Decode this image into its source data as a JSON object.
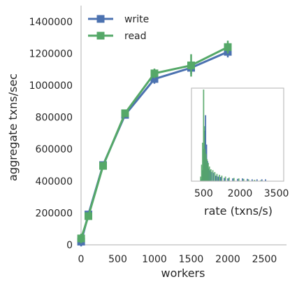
{
  "chart_data": [
    {
      "type": "line",
      "title": "",
      "xlabel": "workers",
      "ylabel": "aggregate txns/sec",
      "xlim": [
        0,
        2800
      ],
      "ylim": [
        0,
        1500000
      ],
      "x_ticks": [
        0,
        500,
        1000,
        1500,
        2000,
        2500
      ],
      "y_ticks": [
        0,
        200000,
        400000,
        600000,
        800000,
        1000000,
        1200000,
        1400000
      ],
      "x_tick_labels": [
        "0",
        "500",
        "1000",
        "1500",
        "2000",
        "2500"
      ],
      "y_tick_labels": [
        "0",
        "200000",
        "400000",
        "600000",
        "800000",
        "1000000",
        "1200000",
        "1400000"
      ],
      "grid": false,
      "legend_position": "top-left",
      "x": [
        1,
        100,
        300,
        600,
        1000,
        1500,
        2000
      ],
      "series": [
        {
          "name": "write",
          "color": "#4c72b0",
          "values": [
            20000,
            190000,
            500000,
            815000,
            1040000,
            1110000,
            1210000
          ],
          "error": [
            30000,
            20000,
            20000,
            20000,
            30000,
            40000,
            35000
          ]
        },
        {
          "name": "read",
          "color": "#55a868",
          "values": [
            40000,
            180000,
            495000,
            825000,
            1075000,
            1125000,
            1240000
          ],
          "error": [
            30000,
            20000,
            20000,
            20000,
            30000,
            70000,
            40000
          ]
        }
      ]
    },
    {
      "type": "histogram",
      "title": "",
      "xlabel": "rate (txns/s)",
      "ylabel": "",
      "xlim": [
        0,
        3800
      ],
      "x_ticks": [
        500,
        2000,
        3500
      ],
      "x_tick_labels": [
        "500",
        "2000",
        "3500"
      ],
      "grid": false,
      "series": [
        {
          "name": "write",
          "color": "#4c72b0",
          "bins": [
            [
              400,
              0.02
            ],
            [
              450,
              0.12
            ],
            [
              500,
              0.35
            ],
            [
              540,
              0.55
            ],
            [
              580,
              0.72
            ],
            [
              620,
              0.4
            ],
            [
              660,
              0.22
            ],
            [
              700,
              0.14
            ],
            [
              760,
              0.12
            ],
            [
              820,
              0.1
            ],
            [
              900,
              0.09
            ],
            [
              1000,
              0.06
            ],
            [
              1100,
              0.05
            ],
            [
              1200,
              0.045
            ],
            [
              1350,
              0.035
            ],
            [
              1500,
              0.03
            ],
            [
              1700,
              0.03
            ],
            [
              1900,
              0.025
            ],
            [
              2100,
              0.03
            ],
            [
              2300,
              0.025
            ],
            [
              2500,
              0.02
            ],
            [
              2700,
              0.02
            ],
            [
              2900,
              0.02
            ],
            [
              3050,
              0.02
            ]
          ]
        },
        {
          "name": "read",
          "color": "#55a868",
          "bins": [
            [
              380,
              0.05
            ],
            [
              420,
              0.18
            ],
            [
              460,
              0.42
            ],
            [
              500,
              1.0
            ],
            [
              530,
              0.6
            ],
            [
              560,
              0.35
            ],
            [
              600,
              0.3
            ],
            [
              640,
              0.24
            ],
            [
              690,
              0.2
            ],
            [
              740,
              0.16
            ],
            [
              800,
              0.13
            ],
            [
              880,
              0.12
            ],
            [
              960,
              0.1
            ],
            [
              1050,
              0.08
            ],
            [
              1150,
              0.07
            ],
            [
              1250,
              0.06
            ],
            [
              1400,
              0.05
            ],
            [
              1550,
              0.04
            ],
            [
              1750,
              0.035
            ],
            [
              1950,
              0.03
            ],
            [
              2150,
              0.025
            ],
            [
              2350,
              0.02
            ],
            [
              2600,
              0.015
            ],
            [
              2850,
              0.01
            ]
          ]
        }
      ]
    }
  ]
}
